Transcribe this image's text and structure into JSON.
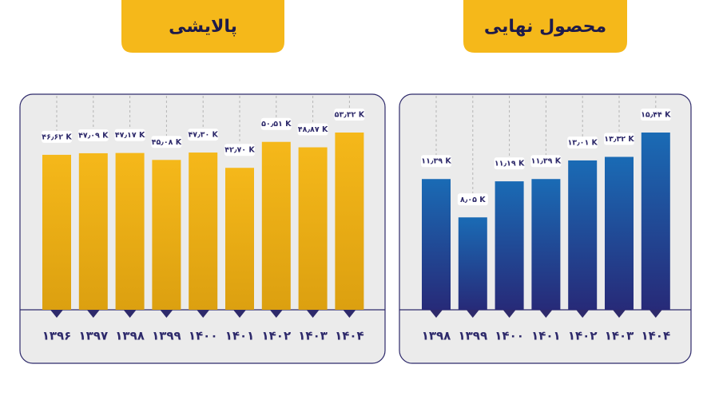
{
  "chart_data": [
    {
      "type": "bar",
      "title": "پالایشی",
      "categories": [
        "۱۳۹۶",
        "۱۳۹۷",
        "۱۳۹۸",
        "۱۳۹۹",
        "۱۴۰۰",
        "۱۴۰۱",
        "۱۴۰۲",
        "۱۴۰۳",
        "۱۴۰۴"
      ],
      "values": [
        46.62,
        47.09,
        47.17,
        45.08,
        47.3,
        42.7,
        50.51,
        48.87,
        53.32
      ],
      "value_labels": [
        "۴۶٫۶۲ K",
        "۴۷٫۰۹ K",
        "۴۷٫۱۷ K",
        "۴۵٫۰۸ K",
        "۴۷٫۳۰ K",
        "۴۲٫۷۰ K",
        "۵۰٫۵۱ K",
        "۴۸٫۸۷ K",
        "۵۳٫۳۲ K"
      ],
      "color": "#f5b81a"
    },
    {
      "type": "bar",
      "title": "محصول نهایی",
      "categories": [
        "۱۳۹۸",
        "۱۳۹۹",
        "۱۴۰۰",
        "۱۴۰۱",
        "۱۴۰۲",
        "۱۴۰۳",
        "۱۴۰۴"
      ],
      "values": [
        11.39,
        8.05,
        11.19,
        11.39,
        13.01,
        13.32,
        15.44
      ],
      "value_labels": [
        "۱۱٫۳۹ K",
        "۸٫۰۵ K",
        "۱۱٫۱۹ K",
        "۱۱٫۳۹ K",
        "۱۳٫۰۱ K",
        "۱۳٫۳۲ K",
        "۱۵٫۴۴ K"
      ],
      "color": "#1a6bb5"
    }
  ]
}
